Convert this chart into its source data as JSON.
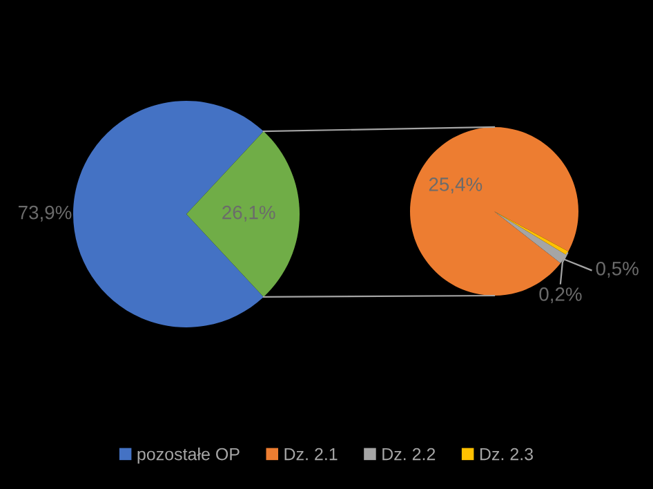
{
  "chart_data": [
    {
      "type": "pie",
      "categories": [
        "pozostałe OP",
        null
      ],
      "values": [
        73.9,
        26.1
      ],
      "colors": [
        "#4472c4",
        "#70ad47"
      ],
      "value_labels": [
        "73,9%",
        "26,1%"
      ],
      "legend": "bottom"
    },
    {
      "type": "pie",
      "categories": [
        "Dz. 2.1",
        "Dz. 2.2",
        "Dz. 2.3"
      ],
      "values": [
        25.4,
        0.5,
        0.2
      ],
      "colors": [
        "#ed7d31",
        "#a5a5a5",
        "#ffc000"
      ],
      "value_labels": [
        "25,4%",
        "0,5%",
        "0,2%"
      ],
      "legend": "bottom"
    }
  ]
}
